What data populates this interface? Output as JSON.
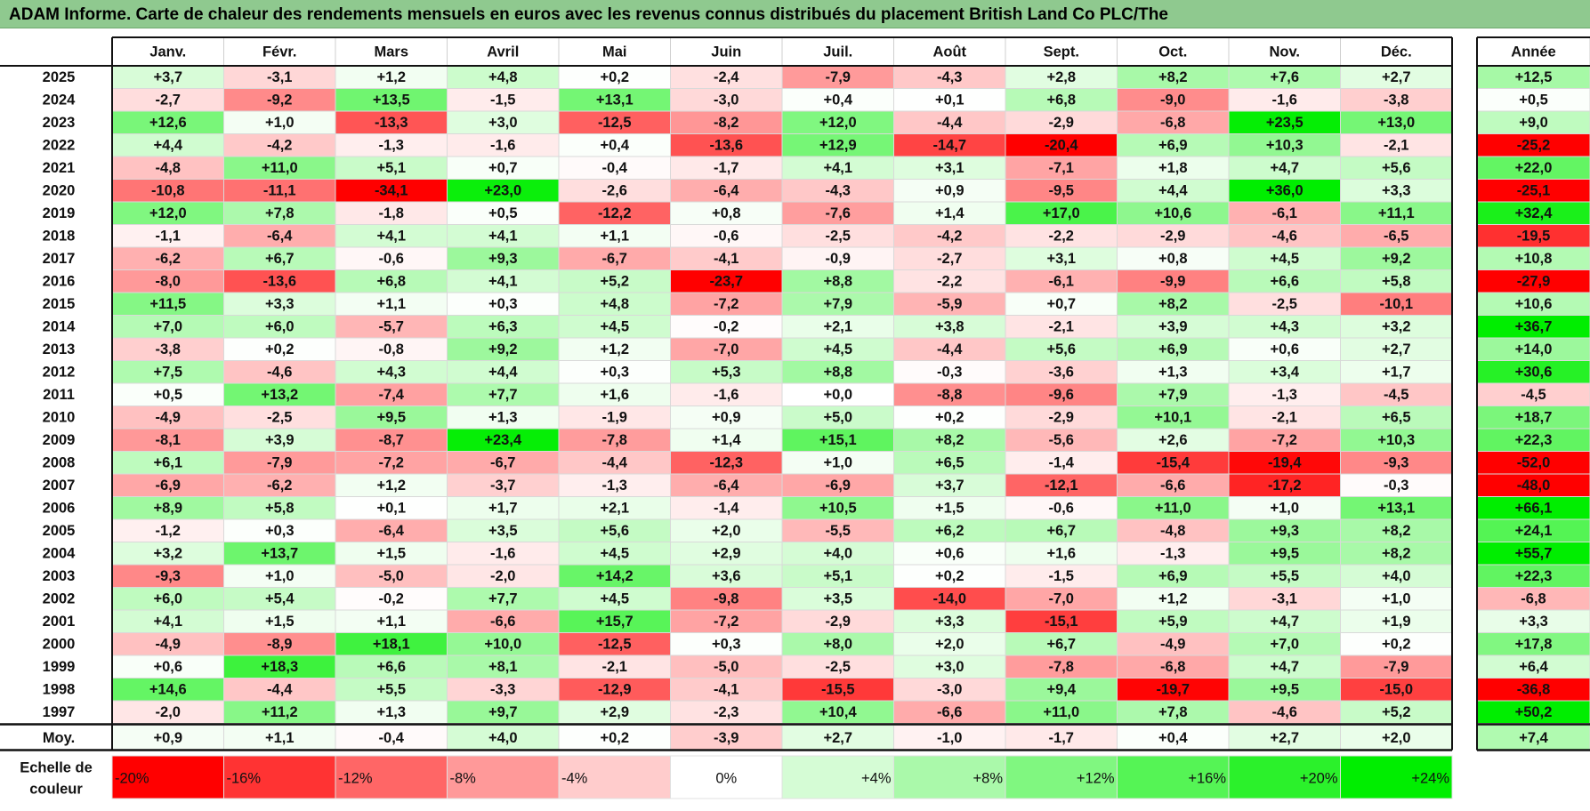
{
  "title": "ADAM Informe. Carte de chaleur des rendements mensuels en euros avec les revenus connus distribués du placement British Land Co PLC/The",
  "chart_data": {
    "type": "heatmap",
    "columns": [
      "Janv.",
      "Févr.",
      "Mars",
      "Avril",
      "Mai",
      "Juin",
      "Juil.",
      "Août",
      "Sept.",
      "Oct.",
      "Nov.",
      "Déc."
    ],
    "annual_header": "Année",
    "avg_label": "Moy.",
    "rows": [
      {
        "year": "2025",
        "values": [
          "+3,7",
          "-3,1",
          "+1,2",
          "+4,8",
          "+0,2",
          "-2,4",
          "-7,9",
          "-4,3",
          "+2,8",
          "+8,2",
          "+7,6",
          "+2,7"
        ],
        "annual": "+12,5"
      },
      {
        "year": "2024",
        "values": [
          "-2,7",
          "-9,2",
          "+13,5",
          "-1,5",
          "+13,1",
          "-3,0",
          "+0,4",
          "+0,1",
          "+6,8",
          "-9,0",
          "-1,6",
          "-3,8"
        ],
        "annual": "+0,5"
      },
      {
        "year": "2023",
        "values": [
          "+12,6",
          "+1,0",
          "-13,3",
          "+3,0",
          "-12,5",
          "-8,2",
          "+12,0",
          "-4,4",
          "-2,9",
          "-6,8",
          "+23,5",
          "+13,0"
        ],
        "annual": "+9,0"
      },
      {
        "year": "2022",
        "values": [
          "+4,4",
          "-4,2",
          "-1,3",
          "-1,6",
          "+0,4",
          "-13,6",
          "+12,9",
          "-14,7",
          "-20,4",
          "+6,9",
          "+10,3",
          "-2,1"
        ],
        "annual": "-25,2"
      },
      {
        "year": "2021",
        "values": [
          "-4,8",
          "+11,0",
          "+5,1",
          "+0,7",
          "-0,4",
          "-1,7",
          "+4,1",
          "+3,1",
          "-7,1",
          "+1,8",
          "+4,7",
          "+5,6"
        ],
        "annual": "+22,0"
      },
      {
        "year": "2020",
        "values": [
          "-10,8",
          "-11,1",
          "-34,1",
          "+23,0",
          "-2,6",
          "-6,4",
          "-4,3",
          "+0,9",
          "-9,5",
          "+4,4",
          "+36,0",
          "+3,3"
        ],
        "annual": "-25,1"
      },
      {
        "year": "2019",
        "values": [
          "+12,0",
          "+7,8",
          "-1,8",
          "+0,5",
          "-12,2",
          "+0,8",
          "-7,6",
          "+1,4",
          "+17,0",
          "+10,6",
          "-6,1",
          "+11,1"
        ],
        "annual": "+32,4"
      },
      {
        "year": "2018",
        "values": [
          "-1,1",
          "-6,4",
          "+4,1",
          "+4,1",
          "+1,1",
          "-0,6",
          "-2,5",
          "-4,2",
          "-2,2",
          "-2,9",
          "-4,6",
          "-6,5"
        ],
        "annual": "-19,5"
      },
      {
        "year": "2017",
        "values": [
          "-6,2",
          "+6,7",
          "-0,6",
          "+9,3",
          "-6,7",
          "-4,1",
          "-0,9",
          "-2,7",
          "+3,1",
          "+0,8",
          "+4,5",
          "+9,2"
        ],
        "annual": "+10,8"
      },
      {
        "year": "2016",
        "values": [
          "-8,0",
          "-13,6",
          "+6,8",
          "+4,1",
          "+5,2",
          "-23,7",
          "+8,8",
          "-2,2",
          "-6,1",
          "-9,9",
          "+6,6",
          "+5,8"
        ],
        "annual": "-27,9"
      },
      {
        "year": "2015",
        "values": [
          "+11,5",
          "+3,3",
          "+1,1",
          "+0,3",
          "+4,8",
          "-7,2",
          "+7,9",
          "-5,9",
          "+0,7",
          "+8,2",
          "-2,5",
          "-10,1"
        ],
        "annual": "+10,6"
      },
      {
        "year": "2014",
        "values": [
          "+7,0",
          "+6,0",
          "-5,7",
          "+6,3",
          "+4,5",
          "-0,2",
          "+2,1",
          "+3,8",
          "-2,1",
          "+3,9",
          "+4,3",
          "+3,2"
        ],
        "annual": "+36,7"
      },
      {
        "year": "2013",
        "values": [
          "-3,8",
          "+0,2",
          "-0,8",
          "+9,2",
          "+1,2",
          "-7,0",
          "+4,5",
          "-4,4",
          "+5,6",
          "+6,9",
          "+0,6",
          "+2,7"
        ],
        "annual": "+14,0"
      },
      {
        "year": "2012",
        "values": [
          "+7,5",
          "-4,6",
          "+4,3",
          "+4,4",
          "+0,3",
          "+5,3",
          "+8,8",
          "-0,3",
          "-3,6",
          "+1,3",
          "+3,4",
          "+1,7"
        ],
        "annual": "+30,6"
      },
      {
        "year": "2011",
        "values": [
          "+0,5",
          "+13,2",
          "-7,4",
          "+7,7",
          "+1,6",
          "-1,6",
          "+0,0",
          "-8,8",
          "-9,6",
          "+7,9",
          "-1,3",
          "-4,5"
        ],
        "annual": "-4,5"
      },
      {
        "year": "2010",
        "values": [
          "-4,9",
          "-2,5",
          "+9,5",
          "+1,3",
          "-1,9",
          "+0,9",
          "+5,0",
          "+0,2",
          "-2,9",
          "+10,1",
          "-2,1",
          "+6,5"
        ],
        "annual": "+18,7"
      },
      {
        "year": "2009",
        "values": [
          "-8,1",
          "+3,9",
          "-8,7",
          "+23,4",
          "-7,8",
          "+1,4",
          "+15,1",
          "+8,2",
          "-5,6",
          "+2,6",
          "-7,2",
          "+10,3"
        ],
        "annual": "+22,3"
      },
      {
        "year": "2008",
        "values": [
          "+6,1",
          "-7,9",
          "-7,2",
          "-6,7",
          "-4,4",
          "-12,3",
          "+1,0",
          "+6,5",
          "-1,4",
          "-15,4",
          "-19,4",
          "-9,3"
        ],
        "annual": "-52,0"
      },
      {
        "year": "2007",
        "values": [
          "-6,9",
          "-6,2",
          "+1,2",
          "-3,7",
          "-1,3",
          "-6,4",
          "-6,9",
          "+3,7",
          "-12,1",
          "-6,6",
          "-17,2",
          "-0,3"
        ],
        "annual": "-48,0"
      },
      {
        "year": "2006",
        "values": [
          "+8,9",
          "+5,8",
          "+0,1",
          "+1,7",
          "+2,1",
          "-1,4",
          "+10,5",
          "+1,5",
          "-0,6",
          "+11,0",
          "+1,0",
          "+13,1"
        ],
        "annual": "+66,1"
      },
      {
        "year": "2005",
        "values": [
          "-1,2",
          "+0,3",
          "-6,4",
          "+3,5",
          "+5,6",
          "+2,0",
          "-5,5",
          "+6,2",
          "+6,7",
          "-4,8",
          "+9,3",
          "+8,2"
        ],
        "annual": "+24,1"
      },
      {
        "year": "2004",
        "values": [
          "+3,2",
          "+13,7",
          "+1,5",
          "-1,6",
          "+4,5",
          "+2,9",
          "+4,0",
          "+0,6",
          "+1,6",
          "-1,3",
          "+9,5",
          "+8,2"
        ],
        "annual": "+55,7"
      },
      {
        "year": "2003",
        "values": [
          "-9,3",
          "+1,0",
          "-5,0",
          "-2,0",
          "+14,2",
          "+3,6",
          "+5,1",
          "+0,2",
          "-1,5",
          "+6,9",
          "+5,5",
          "+4,0"
        ],
        "annual": "+22,3"
      },
      {
        "year": "2002",
        "values": [
          "+6,0",
          "+5,4",
          "-0,2",
          "+7,7",
          "+4,5",
          "-9,8",
          "+3,5",
          "-14,0",
          "-7,0",
          "+1,2",
          "-3,1",
          "+1,0"
        ],
        "annual": "-6,8"
      },
      {
        "year": "2001",
        "values": [
          "+4,1",
          "+1,5",
          "+1,1",
          "-6,6",
          "+15,7",
          "-7,2",
          "-2,9",
          "+3,3",
          "-15,1",
          "+5,9",
          "+4,7",
          "+1,9"
        ],
        "annual": "+3,3"
      },
      {
        "year": "2000",
        "values": [
          "-4,9",
          "-8,9",
          "+18,1",
          "+10,0",
          "-12,5",
          "+0,3",
          "+8,0",
          "+2,0",
          "+6,7",
          "-4,9",
          "+7,0",
          "+0,2"
        ],
        "annual": "+17,8"
      },
      {
        "year": "1999",
        "values": [
          "+0,6",
          "+18,3",
          "+6,6",
          "+8,1",
          "-2,1",
          "-5,0",
          "-2,5",
          "+3,0",
          "-7,8",
          "-6,8",
          "+4,7",
          "-7,9"
        ],
        "annual": "+6,4"
      },
      {
        "year": "1998",
        "values": [
          "+14,6",
          "-4,4",
          "+5,5",
          "-3,3",
          "-12,9",
          "-4,1",
          "-15,5",
          "-3,0",
          "+9,4",
          "-19,7",
          "+9,5",
          "-15,0"
        ],
        "annual": "-36,8"
      },
      {
        "year": "1997",
        "values": [
          "-2,0",
          "+11,2",
          "+1,3",
          "+9,7",
          "+2,9",
          "-2,3",
          "+10,4",
          "-6,6",
          "+11,0",
          "+7,8",
          "-4,6",
          "+5,2"
        ],
        "annual": "+50,2"
      }
    ],
    "averages": [
      "+0,9",
      "+1,1",
      "-0,4",
      "+4,0",
      "+0,2",
      "-3,9",
      "+2,7",
      "-1,0",
      "-1,7",
      "+0,4",
      "+2,7",
      "+2,0"
    ],
    "avg_annual": "+7,4",
    "scale_label_line1": "Echelle de",
    "scale_label_line2": "couleur",
    "scale": [
      {
        "label": "-20%",
        "value": -20,
        "align": "left"
      },
      {
        "label": "-16%",
        "value": -16,
        "align": "left"
      },
      {
        "label": "-12%",
        "value": -12,
        "align": "left"
      },
      {
        "label": "-8%",
        "value": -8,
        "align": "left"
      },
      {
        "label": "-4%",
        "value": -4,
        "align": "left"
      },
      {
        "label": "0%",
        "value": 0,
        "align": "center"
      },
      {
        "label": "+4%",
        "value": 4,
        "align": "right"
      },
      {
        "label": "+8%",
        "value": 8,
        "align": "right"
      },
      {
        "label": "+12%",
        "value": 12,
        "align": "right"
      },
      {
        "label": "+16%",
        "value": 16,
        "align": "right"
      },
      {
        "label": "+20%",
        "value": 20,
        "align": "right"
      },
      {
        "label": "+24%",
        "value": 24,
        "align": "right"
      }
    ],
    "colors": {
      "negative": "#ff0000",
      "zero": "#ffffff",
      "positive": "#00ee00",
      "title_bg": "#8fc98f"
    }
  }
}
